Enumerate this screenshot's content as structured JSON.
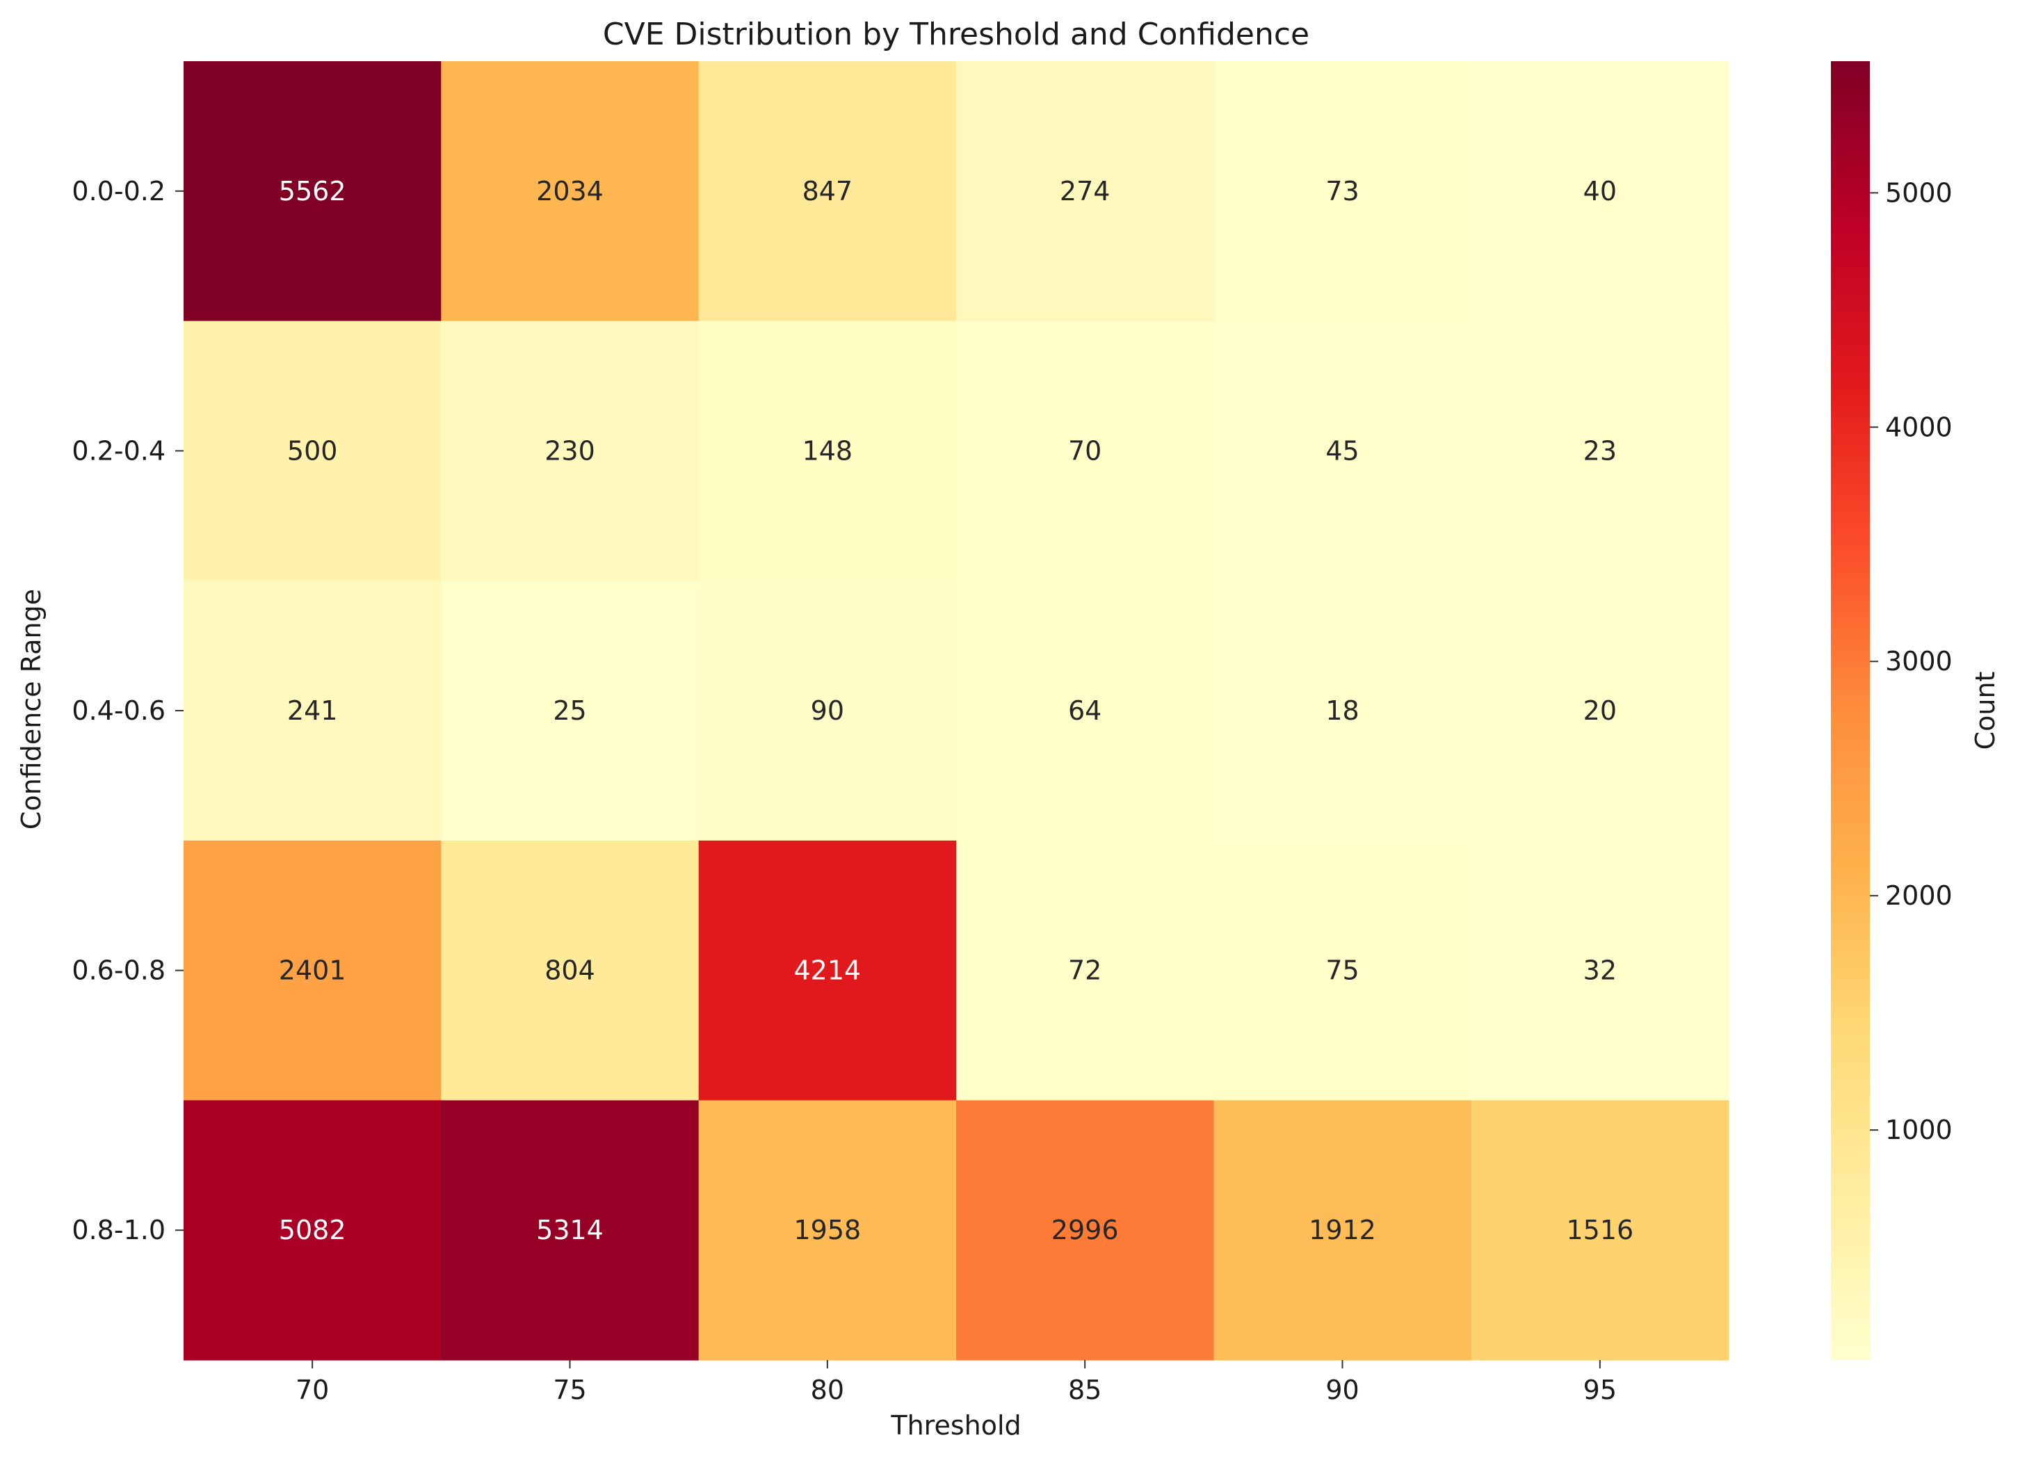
{
  "chart_data": {
    "type": "heatmap",
    "title": "CVE Distribution by Threshold and Confidence",
    "xlabel": "Threshold",
    "ylabel": "Confidence Range",
    "x_categories": [
      "70",
      "75",
      "80",
      "85",
      "90",
      "95"
    ],
    "y_categories": [
      "0.0-0.2",
      "0.2-0.4",
      "0.4-0.6",
      "0.6-0.8",
      "0.8-1.0"
    ],
    "values": [
      [
        5562,
        2034,
        847,
        274,
        73,
        40
      ],
      [
        500,
        230,
        148,
        70,
        45,
        23
      ],
      [
        241,
        25,
        90,
        64,
        18,
        20
      ],
      [
        2401,
        804,
        4214,
        72,
        75,
        32
      ],
      [
        5082,
        5314,
        1958,
        2996,
        1912,
        1516
      ]
    ],
    "colorbar": {
      "label": "Count",
      "ticks": [
        "1000",
        "2000",
        "3000",
        "4000",
        "5000"
      ],
      "tick_values": [
        1000,
        2000,
        3000,
        4000,
        5000
      ],
      "vmin": 18,
      "vmax": 5562,
      "colormap": "YlOrRd"
    },
    "annotations": true,
    "grid": false
  }
}
